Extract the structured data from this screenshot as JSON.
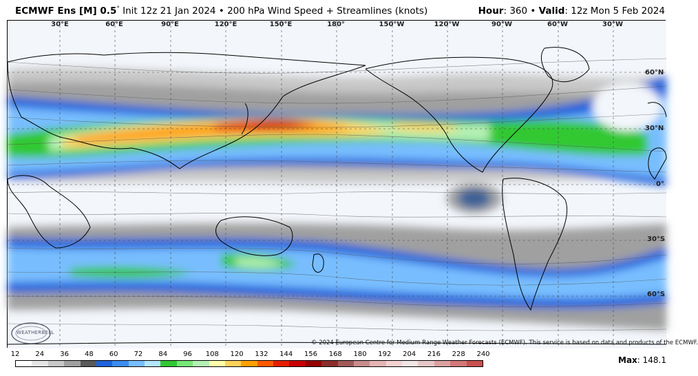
{
  "header": {
    "model": "ECMWF Ens [M] 0.5",
    "degree_sign": "°",
    "init": "Init 12z 21 Jan 2024",
    "bullet": "•",
    "field": "200 hPa Wind Speed + Streamlines (knots)",
    "hour_label": "Hour",
    "hour_value": "360",
    "valid_label": "Valid",
    "valid_value": "12z Mon 5 Feb 2024"
  },
  "map": {
    "lon_labels": [
      "30°E",
      "60°E",
      "90°E",
      "120°E",
      "150°E",
      "180°",
      "150°W",
      "120°W",
      "90°W",
      "60°W",
      "30°W"
    ],
    "lat_labels": [
      "60°N",
      "30°N",
      "0°",
      "30°S",
      "60°S"
    ],
    "copyright": "© 2024 European Centre for Medium-Range Weather Forecasts (ECMWF). This service is based on data and products of the ECMWF.",
    "logo_text": "WEATHERBELL"
  },
  "colorbar": {
    "ticks": [
      "12",
      "24",
      "36",
      "48",
      "60",
      "72",
      "84",
      "96",
      "108",
      "120",
      "132",
      "144",
      "156",
      "168",
      "180",
      "192",
      "204",
      "216",
      "228",
      "240"
    ],
    "colors": [
      "#ffffff",
      "#e6e6e6",
      "#c8c8c8",
      "#a0a0a0",
      "#5a5a5a",
      "#1e64dc",
      "#3c8cf0",
      "#78beff",
      "#b4e6ff",
      "#32c832",
      "#78e678",
      "#b4f0b4",
      "#ffffaa",
      "#ffd25a",
      "#ffa000",
      "#ff5a00",
      "#e61e00",
      "#c80000",
      "#960000",
      "#8c2d2d",
      "#a05a5a",
      "#c88c8c",
      "#e6b4b4",
      "#f5d2d2",
      "#f0e6e6",
      "#e6c8c8",
      "#dca0a0",
      "#d27878",
      "#c85050"
    ],
    "max_label": "Max",
    "max_value": "148.1"
  }
}
